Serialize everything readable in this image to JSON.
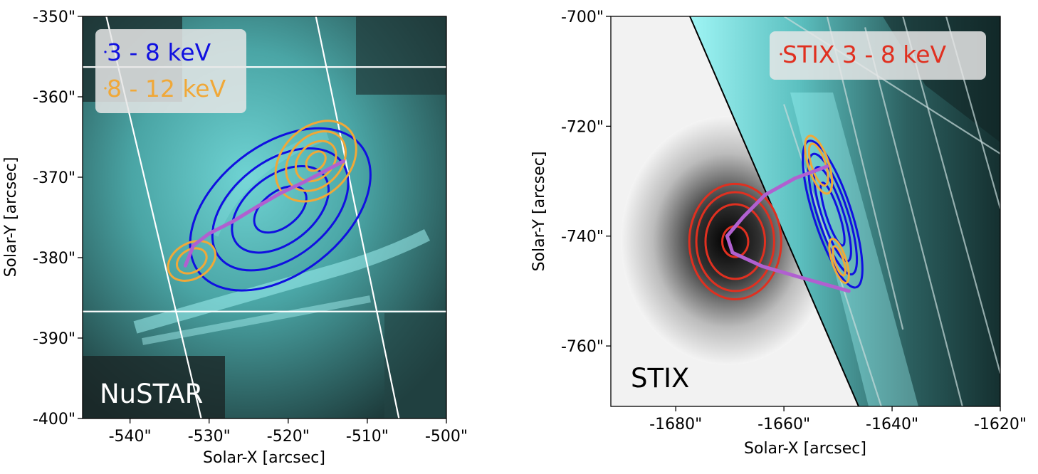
{
  "chart_data": [
    {
      "type": "image-contour",
      "xlabel": "Solar-X [arcsec]",
      "ylabel": "Solar-Y [arcsec]",
      "xlim": [
        -546,
        -500
      ],
      "ylim": [
        -400,
        -350
      ],
      "xticks": [
        "-540\"",
        "-530\"",
        "-520\"",
        "-510\"",
        "-500\""
      ],
      "yticks": [
        "-350\"",
        "-360\"",
        "-370\"",
        "-380\"",
        "-390\"",
        "-400\""
      ],
      "xtick_values": [
        -540,
        -530,
        -520,
        -510,
        -500
      ],
      "ytick_values": [
        -350,
        -360,
        -370,
        -380,
        -390,
        -400
      ],
      "background_colormap": "cyan",
      "instrument_label": "NuSTAR",
      "legend": {
        "placement": "top-left",
        "entries": [
          {
            "name": "3 - 8 keV",
            "color": "#1010e0"
          },
          {
            "name": "8 - 12 keV",
            "color": "#f0a838"
          }
        ]
      },
      "contour_series": [
        {
          "name": "3 - 8 keV",
          "color": "#1010e0",
          "center": [
            -521,
            -374
          ],
          "radii": [
            [
              13,
              8
            ],
            [
              9.8,
              6
            ],
            [
              7,
              4.2
            ],
            [
              3.8,
              2.2
            ]
          ],
          "angle_deg": -38
        },
        {
          "name": "8 - 12 keV",
          "color": "#f0a838",
          "center": [
            -516.5,
            -368
          ],
          "radii": [
            [
              5.8,
              4.2
            ],
            [
              4.3,
              3.1
            ],
            [
              2.9,
              2.1
            ],
            [
              1.4,
              1.0
            ]
          ],
          "angle_deg": -45
        },
        {
          "name": "8 - 12 keV",
          "color": "#f0a838",
          "center": [
            -532.2,
            -380.4
          ],
          "radii": [
            [
              3.2,
              2.2
            ],
            [
              2.0,
              1.4
            ]
          ],
          "angle_deg": -30
        }
      ],
      "loop_curve": {
        "color": "#b060d0",
        "points": [
          [
            -533,
            -381
          ],
          [
            -532,
            -378.5
          ],
          [
            -530,
            -377
          ],
          [
            -527,
            -375.5
          ],
          [
            -524,
            -373.7
          ],
          [
            -521,
            -372
          ],
          [
            -518,
            -370.6
          ],
          [
            -515.5,
            -369.3
          ],
          [
            -513,
            -368
          ]
        ]
      },
      "overlay_lines": [
        {
          "color": "#ffffff",
          "from": [
            -546,
            -356.3
          ],
          "to": [
            -500,
            -356.3
          ]
        },
        {
          "color": "#ffffff",
          "from": [
            -546,
            -386.7
          ],
          "to": [
            -500,
            -386.7
          ]
        },
        {
          "color": "#ffffff",
          "from": [
            -543,
            -350
          ],
          "to": [
            -531,
            -400
          ]
        },
        {
          "color": "#ffffff",
          "from": [
            -516.5,
            -350
          ],
          "to": [
            -506,
            -400
          ]
        }
      ]
    },
    {
      "type": "image-contour",
      "xlabel": "Solar-X [arcsec]",
      "ylabel": "Solar-Y [arcsec]",
      "xlim": [
        -1692,
        -1620
      ],
      "ylim": [
        -771,
        -700
      ],
      "xticks": [
        "-1680\"",
        "-1660\"",
        "-1640\"",
        "-1620\""
      ],
      "yticks": [
        "-700\"",
        "-720\"",
        "-740\"",
        "-760\""
      ],
      "xtick_values": [
        -1680,
        -1660,
        -1640,
        -1620
      ],
      "ytick_values": [
        -700,
        -720,
        -740,
        -760
      ],
      "background_colormap": "gray-reversed + cyan",
      "instrument_label": "STIX",
      "legend": {
        "placement": "top-right",
        "entries": [
          {
            "name": "STIX 3 - 8 keV",
            "color": "#e03020"
          }
        ]
      },
      "contour_series": [
        {
          "name": "STIX 3 - 8 keV",
          "color": "#e03020",
          "center": [
            -1669,
            -741
          ],
          "radii": [
            [
              8.5,
              10.5
            ],
            [
              7.2,
              9.0
            ],
            [
              5.5,
              6.8
            ],
            [
              2.4,
              2.8
            ]
          ],
          "angle_deg": 0
        },
        {
          "name": "3 - 8 keV",
          "color": "#1010e0",
          "center": [
            -1651,
            -736
          ],
          "radii": [
            [
              3.5,
              14
            ],
            [
              2.8,
              11.5
            ],
            [
              2.0,
              9
            ],
            [
              1.2,
              6
            ]
          ],
          "angle_deg": -18
        },
        {
          "name": "8 - 12 keV",
          "color": "#f0a838",
          "center": [
            -1653.6,
            -727
          ],
          "radii": [
            [
              1.9,
              5.5
            ],
            [
              1.3,
              4.0
            ]
          ],
          "angle_deg": -18
        },
        {
          "name": "8 - 12 keV",
          "color": "#f0a838",
          "center": [
            -1649.8,
            -744.5
          ],
          "radii": [
            [
              1.3,
              4.2
            ],
            [
              0.8,
              2.8
            ]
          ],
          "angle_deg": -18
        }
      ],
      "loop_curve": {
        "color": "#b060d0",
        "points": [
          [
            -1652,
            -727.3
          ],
          [
            -1658,
            -729.5
          ],
          [
            -1663.5,
            -732.5
          ],
          [
            -1667.5,
            -736.5
          ],
          [
            -1670.5,
            -740
          ],
          [
            -1669.5,
            -743
          ],
          [
            -1664,
            -745.5
          ],
          [
            -1657,
            -747.5
          ],
          [
            -1648,
            -750
          ]
        ]
      },
      "overlay_lines": [
        {
          "color": "#c8dcdc",
          "from": [
            -1660,
            -716
          ],
          "to": [
            -1642,
            -771
          ]
        },
        {
          "color": "#c8dcdc",
          "from": [
            -1652,
            -700
          ],
          "to": [
            -1638,
            -757
          ]
        },
        {
          "color": "#c8dcdc",
          "from": [
            -1645,
            -702
          ],
          "to": [
            -1627,
            -771
          ]
        },
        {
          "color": "#c8dcdc",
          "from": [
            -1638,
            -700
          ],
          "to": [
            -1620,
            -765
          ]
        },
        {
          "color": "#c8dcdc",
          "from": [
            -1630,
            -700
          ],
          "to": [
            -1620,
            -735
          ]
        },
        {
          "color": "#c8dcdc",
          "from": [
            -1660,
            -700
          ],
          "to": [
            -1620,
            -725
          ]
        }
      ]
    }
  ]
}
